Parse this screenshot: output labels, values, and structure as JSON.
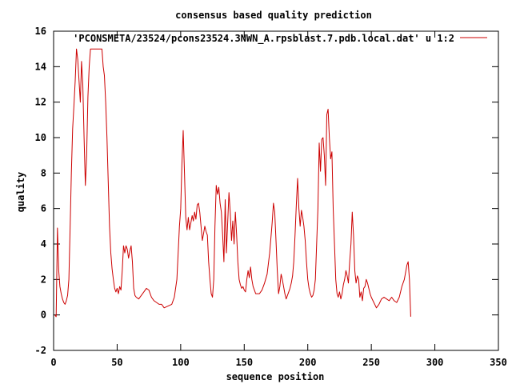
{
  "chart_data": {
    "type": "line",
    "title": "consensus based quality prediction",
    "xlabel": "sequence position",
    "ylabel": "quality",
    "xlim": [
      0,
      350
    ],
    "ylim": [
      -2,
      16
    ],
    "x_ticks": [
      0,
      50,
      100,
      150,
      200,
      250,
      300,
      350
    ],
    "y_ticks": [
      -2,
      0,
      2,
      4,
      6,
      8,
      10,
      12,
      14,
      16
    ],
    "grid": false,
    "legend_position": "top-right",
    "series": [
      {
        "name": "'PCONSMETA/23524/pcons23524.3NWN_A.rpsblast.7.pdb.local.dat' u 1:2",
        "color": "#cc0000",
        "points": [
          [
            1,
            0.0
          ],
          [
            2,
            -0.1
          ],
          [
            3,
            4.9
          ],
          [
            4,
            2.5
          ],
          [
            5,
            1.6
          ],
          [
            6,
            1.2
          ],
          [
            7,
            0.9
          ],
          [
            8,
            0.7
          ],
          [
            9,
            0.6
          ],
          [
            10,
            0.8
          ],
          [
            11,
            1.1
          ],
          [
            12,
            2.0
          ],
          [
            13,
            5.0
          ],
          [
            14,
            8.0
          ],
          [
            15,
            10.5
          ],
          [
            16,
            11.8
          ],
          [
            17,
            13.2
          ],
          [
            18,
            15.0
          ],
          [
            19,
            14.4
          ],
          [
            20,
            13.2
          ],
          [
            21,
            12.0
          ],
          [
            22,
            14.3
          ],
          [
            23,
            13.0
          ],
          [
            24,
            10.0
          ],
          [
            25,
            7.3
          ],
          [
            26,
            9.0
          ],
          [
            27,
            12.3
          ],
          [
            28,
            14.0
          ],
          [
            29,
            15.0
          ],
          [
            30,
            15.0
          ],
          [
            32,
            15.0
          ],
          [
            34,
            15.0
          ],
          [
            36,
            15.0
          ],
          [
            38,
            15.0
          ],
          [
            39,
            14.0
          ],
          [
            40,
            13.5
          ],
          [
            41,
            12.0
          ],
          [
            42,
            10.0
          ],
          [
            43,
            7.5
          ],
          [
            44,
            5.0
          ],
          [
            45,
            3.5
          ],
          [
            46,
            2.6
          ],
          [
            47,
            2.0
          ],
          [
            48,
            1.5
          ],
          [
            49,
            1.3
          ],
          [
            50,
            1.5
          ],
          [
            51,
            1.2
          ],
          [
            52,
            1.6
          ],
          [
            53,
            1.4
          ],
          [
            54,
            2.5
          ],
          [
            55,
            3.9
          ],
          [
            56,
            3.5
          ],
          [
            57,
            3.9
          ],
          [
            58,
            3.7
          ],
          [
            59,
            3.2
          ],
          [
            60,
            3.6
          ],
          [
            61,
            3.9
          ],
          [
            62,
            3.0
          ],
          [
            63,
            1.5
          ],
          [
            64,
            1.1
          ],
          [
            65,
            1.0
          ],
          [
            67,
            0.9
          ],
          [
            69,
            1.1
          ],
          [
            71,
            1.3
          ],
          [
            73,
            1.5
          ],
          [
            75,
            1.4
          ],
          [
            77,
            1.0
          ],
          [
            79,
            0.8
          ],
          [
            81,
            0.7
          ],
          [
            83,
            0.6
          ],
          [
            85,
            0.6
          ],
          [
            87,
            0.4
          ],
          [
            90,
            0.5
          ],
          [
            93,
            0.6
          ],
          [
            95,
            1.0
          ],
          [
            97,
            2.0
          ],
          [
            99,
            5.0
          ],
          [
            100,
            6.0
          ],
          [
            101,
            8.5
          ],
          [
            102,
            10.4
          ],
          [
            103,
            8.0
          ],
          [
            104,
            5.5
          ],
          [
            105,
            4.8
          ],
          [
            106,
            5.5
          ],
          [
            107,
            4.8
          ],
          [
            108,
            5.2
          ],
          [
            109,
            5.6
          ],
          [
            110,
            5.3
          ],
          [
            111,
            5.8
          ],
          [
            112,
            5.4
          ],
          [
            113,
            6.2
          ],
          [
            114,
            6.3
          ],
          [
            115,
            5.8
          ],
          [
            116,
            5.0
          ],
          [
            117,
            4.2
          ],
          [
            118,
            4.6
          ],
          [
            119,
            5.0
          ],
          [
            120,
            4.7
          ],
          [
            121,
            4.5
          ],
          [
            122,
            3.0
          ],
          [
            123,
            2.0
          ],
          [
            124,
            1.2
          ],
          [
            125,
            1.0
          ],
          [
            126,
            2.0
          ],
          [
            127,
            5.0
          ],
          [
            128,
            7.3
          ],
          [
            129,
            6.8
          ],
          [
            130,
            7.2
          ],
          [
            131,
            6.3
          ],
          [
            132,
            5.8
          ],
          [
            133,
            4.5
          ],
          [
            134,
            3.0
          ],
          [
            135,
            6.5
          ],
          [
            136,
            3.5
          ],
          [
            137,
            5.2
          ],
          [
            138,
            6.9
          ],
          [
            139,
            5.8
          ],
          [
            140,
            4.2
          ],
          [
            141,
            5.3
          ],
          [
            142,
            4.0
          ],
          [
            143,
            5.8
          ],
          [
            144,
            4.5
          ],
          [
            145,
            3.0
          ],
          [
            146,
            2.0
          ],
          [
            147,
            1.7
          ],
          [
            148,
            1.5
          ],
          [
            149,
            1.6
          ],
          [
            150,
            1.4
          ],
          [
            151,
            1.3
          ],
          [
            152,
            2.0
          ],
          [
            153,
            2.5
          ],
          [
            154,
            2.1
          ],
          [
            155,
            2.7
          ],
          [
            156,
            2.0
          ],
          [
            157,
            1.6
          ],
          [
            158,
            1.4
          ],
          [
            159,
            1.2
          ],
          [
            160,
            1.2
          ],
          [
            162,
            1.2
          ],
          [
            164,
            1.4
          ],
          [
            166,
            1.8
          ],
          [
            168,
            2.3
          ],
          [
            170,
            3.5
          ],
          [
            172,
            5.2
          ],
          [
            173,
            6.3
          ],
          [
            174,
            5.8
          ],
          [
            175,
            4.2
          ],
          [
            176,
            2.5
          ],
          [
            177,
            1.2
          ],
          [
            178,
            1.6
          ],
          [
            179,
            2.3
          ],
          [
            180,
            2.0
          ],
          [
            181,
            1.6
          ],
          [
            182,
            1.2
          ],
          [
            183,
            0.9
          ],
          [
            184,
            1.1
          ],
          [
            185,
            1.3
          ],
          [
            186,
            1.5
          ],
          [
            187,
            1.8
          ],
          [
            188,
            2.2
          ],
          [
            189,
            3.0
          ],
          [
            190,
            4.5
          ],
          [
            191,
            6.2
          ],
          [
            192,
            7.7
          ],
          [
            193,
            6.0
          ],
          [
            194,
            5.0
          ],
          [
            195,
            5.9
          ],
          [
            196,
            5.5
          ],
          [
            197,
            5.0
          ],
          [
            198,
            4.2
          ],
          [
            199,
            3.0
          ],
          [
            200,
            2.0
          ],
          [
            201,
            1.5
          ],
          [
            202,
            1.2
          ],
          [
            203,
            1.0
          ],
          [
            204,
            1.1
          ],
          [
            205,
            1.4
          ],
          [
            206,
            2.0
          ],
          [
            207,
            4.0
          ],
          [
            208,
            6.0
          ],
          [
            209,
            9.7
          ],
          [
            210,
            8.1
          ],
          [
            211,
            9.9
          ],
          [
            212,
            10.0
          ],
          [
            213,
            9.0
          ],
          [
            214,
            7.3
          ],
          [
            215,
            11.3
          ],
          [
            216,
            11.6
          ],
          [
            217,
            10.0
          ],
          [
            218,
            8.8
          ],
          [
            219,
            9.2
          ],
          [
            220,
            6.0
          ],
          [
            221,
            4.0
          ],
          [
            222,
            2.0
          ],
          [
            223,
            1.2
          ],
          [
            224,
            1.0
          ],
          [
            225,
            1.3
          ],
          [
            226,
            0.9
          ],
          [
            227,
            1.2
          ],
          [
            228,
            1.7
          ],
          [
            229,
            2.0
          ],
          [
            230,
            2.5
          ],
          [
            231,
            2.2
          ],
          [
            232,
            1.8
          ],
          [
            233,
            3.0
          ],
          [
            234,
            4.0
          ],
          [
            235,
            5.8
          ],
          [
            236,
            4.5
          ],
          [
            237,
            2.5
          ],
          [
            238,
            1.8
          ],
          [
            239,
            2.2
          ],
          [
            240,
            2.0
          ],
          [
            241,
            1.0
          ],
          [
            242,
            1.3
          ],
          [
            243,
            0.8
          ],
          [
            244,
            1.5
          ],
          [
            245,
            1.6
          ],
          [
            246,
            2.0
          ],
          [
            247,
            1.8
          ],
          [
            248,
            1.5
          ],
          [
            249,
            1.2
          ],
          [
            250,
            1.0
          ],
          [
            252,
            0.7
          ],
          [
            254,
            0.4
          ],
          [
            256,
            0.6
          ],
          [
            258,
            0.9
          ],
          [
            260,
            1.0
          ],
          [
            262,
            0.9
          ],
          [
            264,
            0.8
          ],
          [
            266,
            1.0
          ],
          [
            268,
            0.8
          ],
          [
            270,
            0.7
          ],
          [
            272,
            1.0
          ],
          [
            274,
            1.6
          ],
          [
            276,
            2.0
          ],
          [
            278,
            2.8
          ],
          [
            279,
            3.0
          ],
          [
            280,
            2.0
          ],
          [
            281,
            -0.1
          ]
        ]
      }
    ]
  }
}
